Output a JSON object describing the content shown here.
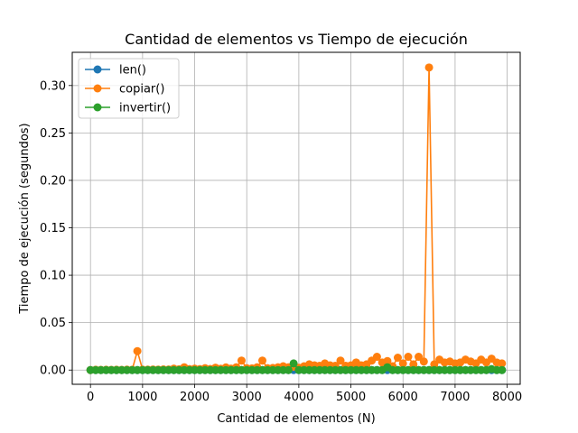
{
  "chart_data": {
    "type": "line",
    "title": "Cantidad de elementos vs Tiempo de ejecución",
    "xlabel": "Cantidad de elementos (N)",
    "ylabel": "Tiempo de ejecución (segundos)",
    "xlim": [
      -350,
      8250
    ],
    "ylim": [
      -0.015,
      0.335
    ],
    "xticks": [
      0,
      1000,
      2000,
      3000,
      4000,
      5000,
      6000,
      7000,
      8000
    ],
    "xtick_labels": [
      "0",
      "1000",
      "2000",
      "3000",
      "4000",
      "5000",
      "6000",
      "7000",
      "8000"
    ],
    "yticks": [
      0.0,
      0.05,
      0.1,
      0.15,
      0.2,
      0.25,
      0.3
    ],
    "ytick_labels": [
      "0.00",
      "0.05",
      "0.10",
      "0.15",
      "0.20",
      "0.25",
      "0.30"
    ],
    "grid": true,
    "legend_position": "top-left",
    "x_start": 0,
    "x_step": 100,
    "series": [
      {
        "name": "len()",
        "color": "#1f77b4",
        "values": [
          0,
          0,
          0,
          0,
          0,
          0,
          0,
          0,
          0,
          0,
          0,
          0,
          0,
          0,
          0,
          0,
          0,
          0,
          0,
          0,
          0,
          0,
          0,
          0,
          0,
          0,
          0,
          0,
          0,
          0,
          0,
          0,
          0,
          0,
          0,
          0,
          0,
          0,
          0,
          0,
          0,
          0,
          0,
          0,
          0,
          0,
          0,
          0,
          0,
          0,
          0,
          0,
          0,
          0,
          0,
          0,
          0,
          0,
          0,
          0,
          0,
          0,
          0,
          0,
          0,
          0,
          0,
          0,
          0,
          0,
          0,
          0,
          0,
          0,
          0,
          0,
          0,
          0,
          0,
          0
        ]
      },
      {
        "name": "copiar()",
        "color": "#ff7f0e",
        "values": [
          0,
          0.0003,
          0.0002,
          0.0003,
          0.0002,
          0.0003,
          0.0002,
          0.0004,
          0.0003,
          0.02,
          0.0005,
          0.0004,
          0.0006,
          0.0005,
          0.0007,
          0.0006,
          0.0015,
          0.0008,
          0.003,
          0.001,
          0.0015,
          0.001,
          0.002,
          0.0012,
          0.0025,
          0.0014,
          0.0028,
          0.0015,
          0.003,
          0.01,
          0.002,
          0.0018,
          0.003,
          0.01,
          0.002,
          0.0022,
          0.003,
          0.004,
          0.003,
          0.0035,
          0.0025,
          0.004,
          0.006,
          0.005,
          0.0045,
          0.007,
          0.005,
          0.0045,
          0.01,
          0.0045,
          0.005,
          0.008,
          0.005,
          0.006,
          0.01,
          0.014,
          0.008,
          0.0095,
          0.004,
          0.013,
          0.007,
          0.014,
          0.006,
          0.014,
          0.009,
          0.319,
          0.006,
          0.011,
          0.008,
          0.009,
          0.007,
          0.008,
          0.011,
          0.009,
          0.007,
          0.011,
          0.008,
          0.012,
          0.008,
          0.007
        ]
      },
      {
        "name": "invertir()",
        "color": "#2ca02c",
        "values": [
          0,
          0,
          0,
          0,
          0,
          0,
          0,
          0,
          0,
          0,
          0,
          0,
          0,
          0,
          0,
          0,
          0,
          0,
          0,
          0,
          0,
          0,
          0,
          0,
          0,
          0,
          0,
          0,
          0,
          0,
          0,
          0,
          0,
          0,
          0,
          0,
          0,
          0,
          0,
          0.007,
          0,
          0,
          0,
          0,
          0,
          0,
          0,
          0,
          0,
          0,
          0,
          0,
          0,
          0,
          0,
          0,
          0,
          0.003,
          0,
          0,
          0,
          0,
          0,
          0,
          0,
          0,
          0,
          0,
          0,
          0,
          0,
          0,
          0,
          0,
          0,
          0,
          0,
          0.001,
          0,
          0
        ]
      }
    ]
  }
}
